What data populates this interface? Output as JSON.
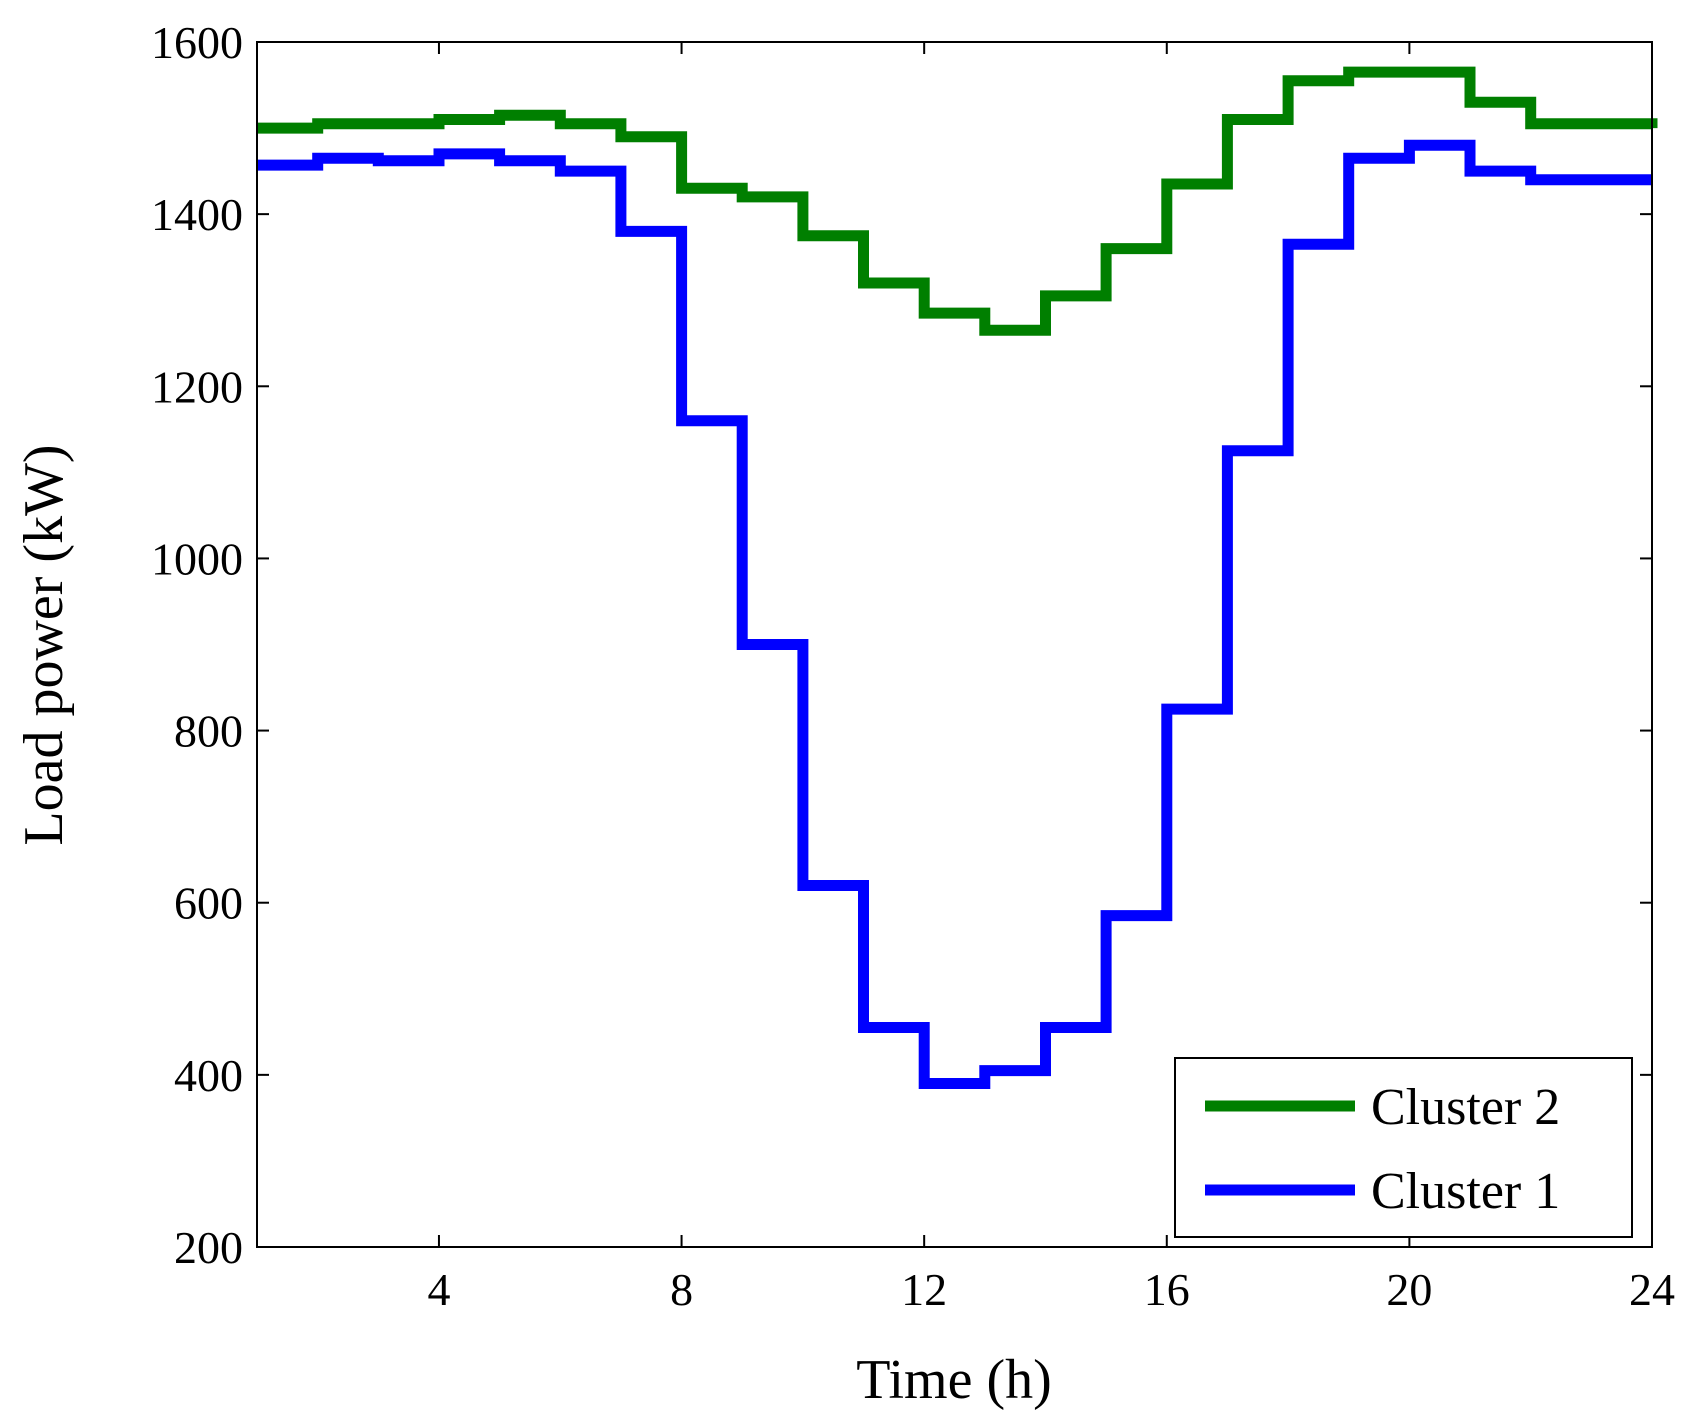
{
  "chart_data": {
    "type": "line",
    "step": true,
    "title": "",
    "xlabel": "Time (h)",
    "ylabel": "Load power (kW)",
    "xlim": [
      1,
      24
    ],
    "ylim": [
      200,
      1600
    ],
    "x_ticks": [
      4,
      8,
      12,
      16,
      20,
      24
    ],
    "y_ticks": [
      200,
      400,
      600,
      800,
      1000,
      1200,
      1400,
      1600
    ],
    "legend_position": "bottom-right",
    "x": [
      1,
      2,
      3,
      4,
      5,
      6,
      7,
      8,
      9,
      10,
      11,
      12,
      13,
      14,
      15,
      16,
      17,
      18,
      19,
      20,
      21,
      22,
      23,
      24
    ],
    "series": [
      {
        "name": "Cluster 2",
        "color": "#007f00",
        "values": [
          1500,
          1505,
          1505,
          1510,
          1515,
          1505,
          1490,
          1430,
          1420,
          1375,
          1320,
          1285,
          1265,
          1305,
          1360,
          1435,
          1510,
          1555,
          1565,
          1565,
          1530,
          1505,
          1505,
          1500
        ]
      },
      {
        "name": "Cluster 1",
        "color": "#0000ff",
        "values": [
          1457,
          1465,
          1462,
          1470,
          1462,
          1450,
          1380,
          1160,
          900,
          620,
          455,
          390,
          405,
          455,
          585,
          825,
          1125,
          1365,
          1465,
          1480,
          1450,
          1440,
          1440,
          1440
        ]
      }
    ]
  }
}
